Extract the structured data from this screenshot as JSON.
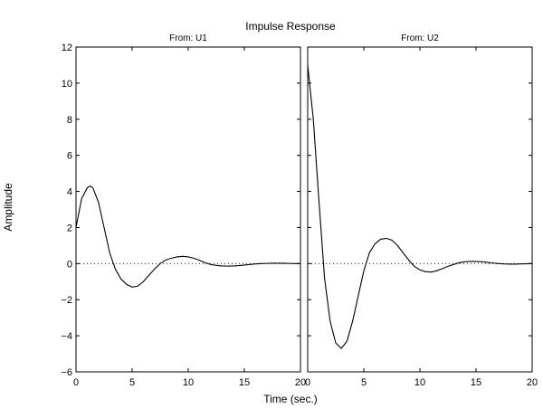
{
  "chart_data": {
    "type": "line",
    "title": "Impulse Response",
    "xlabel": "Time (sec.)",
    "ylabel": "Amplitude",
    "xlim": [
      0,
      20
    ],
    "ylim": [
      -6,
      12
    ],
    "xticks": [
      0,
      5,
      10,
      15,
      20
    ],
    "yticks": [
      -6,
      -4,
      -2,
      0,
      2,
      4,
      6,
      8,
      10,
      12
    ],
    "zero_line": true,
    "grid": false,
    "panels": [
      {
        "subtitle": "From: U1",
        "series": [
          {
            "x": [
              0,
              0.5,
              1,
              1.25,
              1.5,
              2,
              2.5,
              3,
              3.5,
              4,
              4.5,
              5,
              5.5,
              6,
              6.5,
              7,
              7.5,
              8,
              8.5,
              9,
              9.5,
              10,
              10.5,
              11,
              11.5,
              12,
              12.5,
              13,
              13.5,
              14,
              14.5,
              15,
              15.5,
              16,
              16.5,
              17,
              17.5,
              18,
              18.5,
              19,
              19.5,
              20
            ],
            "y": [
              2.0,
              3.6,
              4.2,
              4.3,
              4.2,
              3.4,
              2.0,
              0.6,
              -0.3,
              -0.85,
              -1.15,
              -1.3,
              -1.25,
              -1.0,
              -0.65,
              -0.3,
              0.0,
              0.2,
              0.3,
              0.37,
              0.4,
              0.37,
              0.3,
              0.18,
              0.05,
              -0.05,
              -0.1,
              -0.13,
              -0.14,
              -0.13,
              -0.11,
              -0.08,
              -0.05,
              -0.02,
              0.0,
              0.01,
              0.02,
              0.02,
              0.015,
              0.01,
              0.0,
              0.0
            ]
          }
        ]
      },
      {
        "subtitle": "From: U2",
        "series": [
          {
            "x": [
              0,
              0.5,
              1,
              1.5,
              2,
              2.5,
              3,
              3.5,
              4,
              4.5,
              5,
              5.5,
              6,
              6.5,
              7,
              7.5,
              8,
              8.5,
              9,
              9.5,
              10,
              10.5,
              11,
              11.5,
              12,
              12.5,
              13,
              13.5,
              14,
              14.5,
              15,
              15.5,
              16,
              16.5,
              17,
              17.5,
              18,
              18.5,
              19,
              19.5,
              20
            ],
            "y": [
              11.0,
              8.0,
              3.5,
              -0.8,
              -3.2,
              -4.4,
              -4.7,
              -4.3,
              -3.2,
              -1.8,
              -0.4,
              0.6,
              1.1,
              1.35,
              1.4,
              1.3,
              1.0,
              0.6,
              0.2,
              -0.15,
              -0.35,
              -0.45,
              -0.47,
              -0.4,
              -0.28,
              -0.15,
              -0.05,
              0.05,
              0.1,
              0.12,
              0.12,
              0.1,
              0.07,
              0.03,
              0.0,
              -0.02,
              -0.03,
              -0.03,
              -0.02,
              -0.01,
              0.0
            ]
          }
        ]
      }
    ]
  }
}
